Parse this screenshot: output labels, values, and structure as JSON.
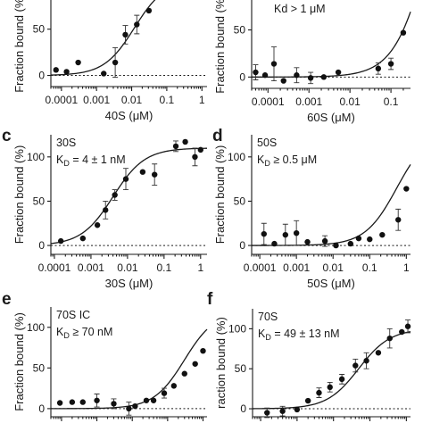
{
  "chart_data": [
    {
      "panel": "a",
      "type": "scatter",
      "show_letter": false,
      "annotation": [],
      "xlabel": "40S (μM)",
      "ylabel": "Fraction bound (%)",
      "xscale": "log",
      "xlim": [
        5e-05,
        1.4
      ],
      "ylim": [
        -12,
        95
      ],
      "xticks": [
        0.0001,
        0.001,
        0.01,
        0.1,
        1
      ],
      "xtick_labels": [
        "0.0001",
        "0.001",
        "0.01",
        "0.1",
        "1"
      ],
      "yticks": [
        0,
        50
      ],
      "ytick_labels": [
        "0",
        "50"
      ],
      "fit": {
        "model": "hill",
        "kd": 0.012,
        "bmax": 103
      },
      "points": [
        {
          "x": 7e-05,
          "y": 6,
          "err": 0
        },
        {
          "x": 0.00014,
          "y": 4,
          "err": 0
        },
        {
          "x": 0.0003,
          "y": 14,
          "err": 0
        },
        {
          "x": 0.0016,
          "y": 2,
          "err": 0
        },
        {
          "x": 0.0034,
          "y": 14,
          "err": 16
        },
        {
          "x": 0.0066,
          "y": 44,
          "err": 10
        },
        {
          "x": 0.014,
          "y": 55,
          "err": 10
        },
        {
          "x": 0.031,
          "y": 70,
          "err": 0
        },
        {
          "x": 0.07,
          "y": 85,
          "err": 0
        }
      ]
    },
    {
      "panel": "b",
      "type": "scatter",
      "show_letter": false,
      "annotation": [
        "Kd > 1 μM"
      ],
      "xlabel": "60S (μM)",
      "ylabel": "Fraction bound (%)",
      "xscale": "log",
      "xlim": [
        4e-05,
        0.3
      ],
      "ylim": [
        -12,
        95
      ],
      "xticks": [
        0.0001,
        0.001,
        0.01,
        0.1
      ],
      "xtick_labels": [
        "0.0001",
        "0.001",
        "0.01",
        "0.1"
      ],
      "yticks": [
        0,
        50
      ],
      "ytick_labels": [
        "0",
        "50"
      ],
      "fit": {
        "model": "hill",
        "kd": 1.0,
        "bmax": 300
      },
      "points": [
        {
          "x": 5e-05,
          "y": 5,
          "err": 8
        },
        {
          "x": 8.5e-05,
          "y": 2,
          "err": 0
        },
        {
          "x": 0.00014,
          "y": 14,
          "err": 18
        },
        {
          "x": 0.00024,
          "y": -4,
          "err": 0
        },
        {
          "x": 0.0005,
          "y": 2,
          "err": 8
        },
        {
          "x": 0.0011,
          "y": -1,
          "err": 6
        },
        {
          "x": 0.0023,
          "y": 0,
          "err": 0
        },
        {
          "x": 0.0052,
          "y": 5,
          "err": 0
        },
        {
          "x": 0.049,
          "y": 9,
          "err": 6
        },
        {
          "x": 0.1,
          "y": 14,
          "err": 6
        },
        {
          "x": 0.2,
          "y": 47,
          "err": 0
        }
      ]
    },
    {
      "panel": "c",
      "type": "scatter",
      "show_letter": true,
      "annotation": [
        "30S",
        "K_D = 4 ± 1 nM"
      ],
      "xlabel": "30S (μM)",
      "ylabel": "Fraction bound (%)",
      "xscale": "log",
      "xlim": [
        8e-05,
        1.5
      ],
      "ylim": [
        -10,
        125
      ],
      "xticks": [
        0.0001,
        0.001,
        0.01,
        0.1,
        1
      ],
      "xtick_labels": [
        "0.0001",
        "0.001",
        "0.01",
        "0.1",
        "1"
      ],
      "yticks": [
        0,
        50,
        100
      ],
      "ytick_labels": [
        "0",
        "50",
        "100"
      ],
      "fit": {
        "model": "hill",
        "kd": 0.004,
        "bmax": 110
      },
      "points": [
        {
          "x": 0.00015,
          "y": 5,
          "err": 0
        },
        {
          "x": 0.0006,
          "y": 8,
          "err": 0
        },
        {
          "x": 0.0015,
          "y": 23,
          "err": 0
        },
        {
          "x": 0.0025,
          "y": 40,
          "err": 10
        },
        {
          "x": 0.0045,
          "y": 57,
          "err": 6
        },
        {
          "x": 0.009,
          "y": 75,
          "err": 12
        },
        {
          "x": 0.026,
          "y": 83,
          "err": 0
        },
        {
          "x": 0.055,
          "y": 80,
          "err": 12
        },
        {
          "x": 0.21,
          "y": 112,
          "err": 6
        },
        {
          "x": 0.38,
          "y": 117,
          "err": 0
        },
        {
          "x": 0.7,
          "y": 100,
          "err": 10
        },
        {
          "x": 1.0,
          "y": 108,
          "err": 0
        }
      ]
    },
    {
      "panel": "d",
      "type": "scatter",
      "show_letter": true,
      "annotation": [
        "50S",
        "K_D ≥ 0.5 μM"
      ],
      "xlabel": "50S (μM)",
      "ylabel": "Fraction bound (%)",
      "xscale": "log",
      "xlim": [
        6e-05,
        1.3
      ],
      "ylim": [
        -10,
        125
      ],
      "xticks": [
        0.0001,
        0.001,
        0.01,
        0.1,
        1
      ],
      "xtick_labels": [
        "0.0001",
        "0.001",
        "0.01",
        "0.1",
        "1"
      ],
      "yticks": [
        0,
        50,
        100
      ],
      "ytick_labels": [
        "0",
        "50",
        "100"
      ],
      "fit": {
        "model": "hill",
        "kd": 0.55,
        "bmax": 130
      },
      "points": [
        {
          "x": 0.00013,
          "y": 13,
          "err": 12
        },
        {
          "x": 0.00025,
          "y": 2,
          "err": 0
        },
        {
          "x": 0.0005,
          "y": 12,
          "err": 12
        },
        {
          "x": 0.001,
          "y": 14,
          "err": 14
        },
        {
          "x": 0.002,
          "y": 4,
          "err": 0
        },
        {
          "x": 0.006,
          "y": 5,
          "err": 6
        },
        {
          "x": 0.012,
          "y": 0,
          "err": 0
        },
        {
          "x": 0.03,
          "y": 2,
          "err": 0
        },
        {
          "x": 0.05,
          "y": 8,
          "err": 0
        },
        {
          "x": 0.1,
          "y": 7,
          "err": 0
        },
        {
          "x": 0.22,
          "y": 12,
          "err": 0
        },
        {
          "x": 0.6,
          "y": 29,
          "err": 12
        },
        {
          "x": 1.0,
          "y": 64,
          "err": 0
        }
      ]
    },
    {
      "panel": "e",
      "type": "scatter",
      "show_letter": true,
      "annotation": [
        "70S IC",
        "K_D ≥ 70 nM"
      ],
      "xlabel": "",
      "ylabel": "Fraction bound (%)",
      "xscale": "log",
      "xlim": [
        5e-05,
        1.3
      ],
      "ylim": [
        -10,
        125
      ],
      "xticks": [],
      "xtick_labels": [],
      "yticks": [
        0,
        50,
        100
      ],
      "ytick_labels": [
        "0",
        "50",
        "100"
      ],
      "fit": {
        "model": "hill",
        "kd": 0.3,
        "bmax": 120
      },
      "points": [
        {
          "x": 9e-05,
          "y": 7,
          "err": 0
        },
        {
          "x": 0.0002,
          "y": 8,
          "err": 0
        },
        {
          "x": 0.0004,
          "y": 8,
          "err": 0
        },
        {
          "x": 0.001,
          "y": 10,
          "err": 8
        },
        {
          "x": 0.003,
          "y": 6,
          "err": 6
        },
        {
          "x": 0.008,
          "y": 0,
          "err": 8
        },
        {
          "x": 0.012,
          "y": 3,
          "err": 0
        },
        {
          "x": 0.025,
          "y": 10,
          "err": 0
        },
        {
          "x": 0.04,
          "y": 10,
          "err": 0
        },
        {
          "x": 0.08,
          "y": 19,
          "err": 6
        },
        {
          "x": 0.15,
          "y": 28,
          "err": 0
        },
        {
          "x": 0.3,
          "y": 43,
          "err": 0
        },
        {
          "x": 0.6,
          "y": 55,
          "err": 0
        },
        {
          "x": 1.0,
          "y": 71,
          "err": 0
        }
      ]
    },
    {
      "panel": "f",
      "type": "scatter",
      "show_letter": true,
      "annotation": [
        "70S",
        "K_D = 49 ± 13 nM"
      ],
      "xlabel": "",
      "ylabel": "raction bound (%)",
      "xscale": "log",
      "xlim": [
        6e-05,
        1.3
      ],
      "ylim": [
        -10,
        125
      ],
      "xticks": [],
      "xtick_labels": [],
      "yticks": [
        0,
        50,
        100
      ],
      "ytick_labels": [
        "0",
        "50",
        "100"
      ],
      "fit": {
        "model": "hill",
        "kd": 0.049,
        "bmax": 100
      },
      "points": [
        {
          "x": 0.00015,
          "y": -5,
          "err": 6
        },
        {
          "x": 0.0004,
          "y": -3,
          "err": 6
        },
        {
          "x": 0.001,
          "y": -1,
          "err": 0
        },
        {
          "x": 0.002,
          "y": 10,
          "err": 0
        },
        {
          "x": 0.004,
          "y": 20,
          "err": 6
        },
        {
          "x": 0.008,
          "y": 27,
          "err": 6
        },
        {
          "x": 0.017,
          "y": 37,
          "err": 6
        },
        {
          "x": 0.04,
          "y": 54,
          "err": 8
        },
        {
          "x": 0.08,
          "y": 60,
          "err": 10
        },
        {
          "x": 0.17,
          "y": 70,
          "err": 0
        },
        {
          "x": 0.35,
          "y": 88,
          "err": 12
        },
        {
          "x": 0.75,
          "y": 96,
          "err": 0
        },
        {
          "x": 1.1,
          "y": 103,
          "err": 8
        }
      ]
    }
  ]
}
